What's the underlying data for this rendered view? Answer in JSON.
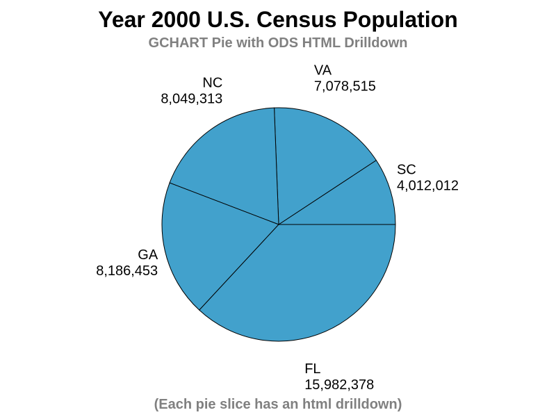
{
  "title": "Year 2000 U.S. Census Population",
  "subtitle": "GCHART Pie with ODS HTML Drilldown",
  "footnote": "(Each pie slice has an html drilldown)",
  "chart_data": {
    "type": "pie",
    "title": "Year 2000 U.S. Census Population",
    "subtitle": "GCHART Pie with ODS HTML Drilldown",
    "slice_color": "#42A1CC",
    "outline_color": "#000000",
    "slices": [
      {
        "category": "SC",
        "value": 4012012,
        "value_label": "4,012,012"
      },
      {
        "category": "VA",
        "value": 7078515,
        "value_label": "7,078,515"
      },
      {
        "category": "NC",
        "value": 8049313,
        "value_label": "8,049,313"
      },
      {
        "category": "GA",
        "value": 8186453,
        "value_label": "8,186,453"
      },
      {
        "category": "FL",
        "value": 15982378,
        "value_label": "15,982,378"
      }
    ]
  }
}
